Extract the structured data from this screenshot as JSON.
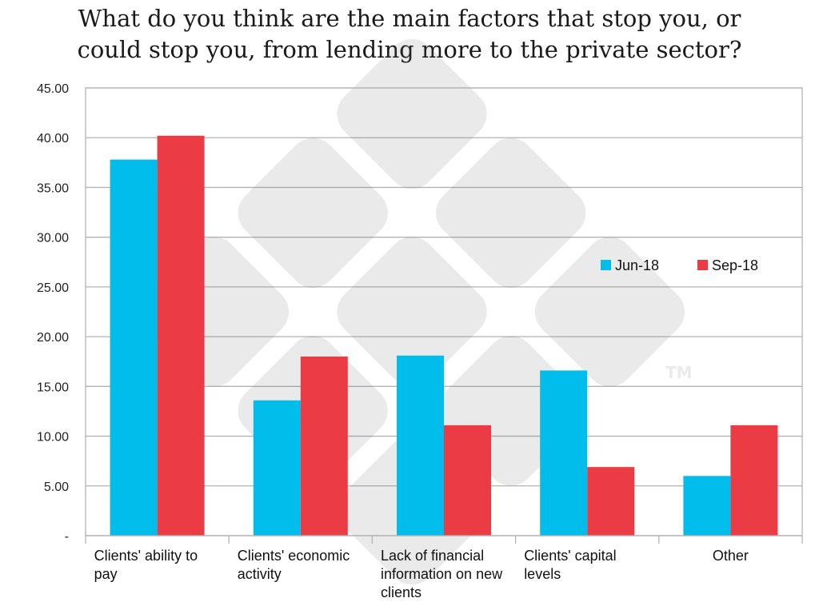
{
  "title_lines": [
    "What do you think are the main factors that stop you, or",
    "could stop you, from lending more to the private sector?"
  ],
  "watermark": {
    "mark": "TM"
  },
  "chart_data": {
    "type": "bar",
    "categories": [
      [
        "Clients' ability to",
        "pay"
      ],
      [
        "Clients' economic",
        "activity"
      ],
      [
        "Lack of financial",
        "information on new",
        "clients"
      ],
      [
        "Clients' capital",
        "levels"
      ],
      [
        "Other"
      ]
    ],
    "series": [
      {
        "name": "Jun-18",
        "color": "#00BDEB",
        "values": [
          37.8,
          13.6,
          18.1,
          16.6,
          6.0
        ]
      },
      {
        "name": "Sep-18",
        "color": "#EB3C46",
        "values": [
          40.2,
          18.0,
          11.1,
          6.9,
          11.1
        ]
      }
    ],
    "ylim": [
      0,
      45
    ],
    "yticks": [
      {
        "value": 0,
        "label": "-"
      },
      {
        "value": 5,
        "label": "5.00"
      },
      {
        "value": 10,
        "label": "10.00"
      },
      {
        "value": 15,
        "label": "15.00"
      },
      {
        "value": 20,
        "label": "20.00"
      },
      {
        "value": 25,
        "label": "25.00"
      },
      {
        "value": 30,
        "label": "30.00"
      },
      {
        "value": 35,
        "label": "35.00"
      },
      {
        "value": 40,
        "label": "40.00"
      },
      {
        "value": 45,
        "label": "45.00"
      }
    ],
    "grid": true,
    "legend_position": "upper-right"
  }
}
